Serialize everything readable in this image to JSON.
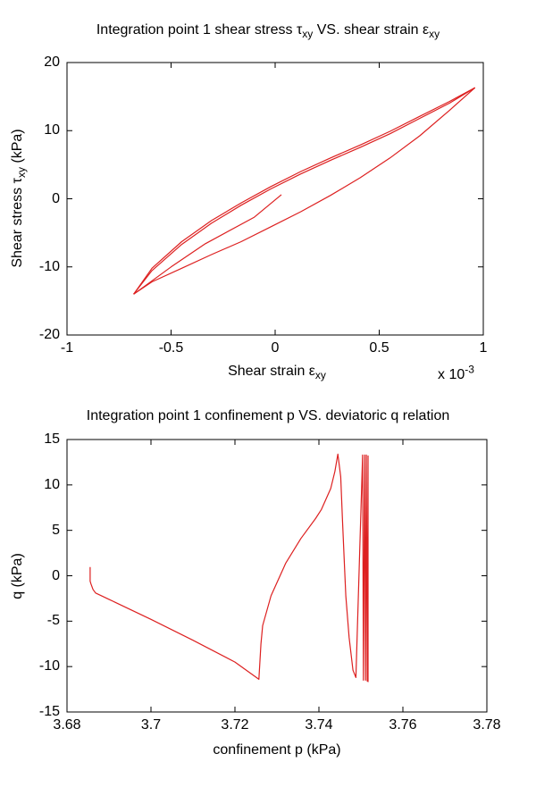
{
  "figure": {
    "background": "#ffffff",
    "axis_color": "#000000",
    "line_color": "#dd2020"
  },
  "chart_data": [
    {
      "type": "line",
      "title": "Integration point 1 shear stress τxy VS. shear strain εxy",
      "title_parts": {
        "p1": "Integration point 1 shear stress τ",
        "sub1": "xy",
        "p2": " VS. shear strain ε",
        "sub2": "xy"
      },
      "xlabel": "Shear strain εxy",
      "xlabel_parts": {
        "p1": "Shear strain ε",
        "sub1": "xy"
      },
      "ylabel": "Shear stress τxy (kPa)",
      "ylabel_parts": {
        "p1": "Shear stress τ",
        "sub1": "xy",
        "p2": " (kPa)"
      },
      "x_scale_annotation": {
        "prefix": "x 10",
        "sup": "-3"
      },
      "x_unit_scale": "1e-3",
      "xlim": [
        -1,
        1
      ],
      "ylim": [
        -20,
        20
      ],
      "x_tick_values": [
        -1,
        -0.5,
        0,
        0.5,
        1
      ],
      "x_tick_labels": [
        "-1",
        "-0.5",
        "0",
        "0.5",
        "1"
      ],
      "y_tick_values": [
        -20,
        -10,
        0,
        10,
        20
      ],
      "y_tick_labels": [
        "-20",
        "-10",
        "0",
        "10",
        "20"
      ],
      "grid": false,
      "legend": null,
      "line_color": "#dd2020",
      "series": [
        {
          "name": "initial_loading",
          "x": [
            0.03,
            -0.1,
            -0.335,
            -0.5,
            -0.68
          ],
          "y": [
            0.6,
            -2.7,
            -6.6,
            -10.0,
            -14.0
          ]
        },
        {
          "name": "cycle_upper_1",
          "x": [
            -0.68,
            -0.592,
            -0.449,
            -0.306,
            -0.163,
            -0.02,
            0.123,
            0.266,
            0.409,
            0.552,
            0.695,
            0.838,
            0.96
          ],
          "y": [
            -14.0,
            -10.2,
            -6.3,
            -3.2,
            -0.6,
            1.8,
            4.0,
            6.0,
            7.9,
            9.9,
            12.1,
            14.3,
            16.3
          ]
        },
        {
          "name": "cycle_upper_2",
          "x": [
            -0.68,
            -0.592,
            -0.449,
            -0.306,
            -0.163,
            -0.02,
            0.123,
            0.266,
            0.409,
            0.552,
            0.695,
            0.838,
            0.96
          ],
          "y": [
            -14.0,
            -10.55,
            -6.7,
            -3.6,
            -0.95,
            1.45,
            3.65,
            5.65,
            7.55,
            9.55,
            11.8,
            14.05,
            16.3
          ]
        },
        {
          "name": "cycle_lower",
          "x": [
            0.96,
            0.838,
            0.695,
            0.552,
            0.409,
            0.266,
            0.123,
            -0.02,
            -0.163,
            -0.306,
            -0.449,
            -0.592,
            -0.68
          ],
          "y": [
            16.3,
            13.0,
            9.25,
            6.0,
            3.1,
            0.5,
            -1.9,
            -4.1,
            -6.3,
            -8.2,
            -10.2,
            -12.2,
            -14.0
          ]
        }
      ]
    },
    {
      "type": "line",
      "title": "Integration point 1 confinement p VS. deviatoric q relation",
      "title_parts": {
        "p1": "Integration point 1 confinement p VS. deviatoric q relation"
      },
      "xlabel": "confinement p (kPa)",
      "xlabel_parts": {
        "p1": "confinement p (kPa)"
      },
      "ylabel": "q (kPa)",
      "ylabel_parts": {
        "p1": "q (kPa)"
      },
      "xlim": [
        3.68,
        3.78
      ],
      "ylim": [
        -15,
        15
      ],
      "x_tick_values": [
        3.68,
        3.7,
        3.72,
        3.74,
        3.76,
        3.78
      ],
      "x_tick_labels": [
        "3.68",
        "3.7",
        "3.72",
        "3.74",
        "3.76",
        "3.78"
      ],
      "y_tick_values": [
        -15,
        -10,
        -5,
        0,
        5,
        10,
        15
      ],
      "y_tick_labels": [
        "-15",
        "-10",
        "-5",
        "0",
        "5",
        "10",
        "15"
      ],
      "grid": false,
      "legend": null,
      "line_color": "#dd2020",
      "series": [
        {
          "name": "p_q_path",
          "x": [
            3.6855,
            3.6855,
            3.6857,
            3.6862,
            3.6868,
            3.69,
            3.7,
            3.71,
            3.72,
            3.7257,
            3.7262,
            3.7266,
            3.7286,
            3.7321,
            3.7357,
            3.7392,
            3.7406,
            3.7428,
            3.7438,
            3.7445,
            3.7452,
            3.7456,
            3.746,
            3.7464,
            3.7472,
            3.7481,
            3.7488,
            3.7504,
            3.7506,
            3.7509,
            3.7511,
            3.7513,
            3.7515,
            3.7517,
            3.7517
          ],
          "y": [
            0.95,
            -0.6,
            -0.9,
            -1.5,
            -1.9,
            -2.6,
            -4.8,
            -7.1,
            -9.5,
            -11.4,
            -7.5,
            -5.5,
            -2.2,
            1.4,
            4.1,
            6.3,
            7.3,
            9.6,
            11.5,
            13.4,
            10.9,
            6.3,
            2.0,
            -2.2,
            -6.8,
            -10.4,
            -11.2,
            13.3,
            -11.5,
            13.3,
            -11.5,
            13.3,
            -11.6,
            13.2,
            -11.7
          ]
        }
      ]
    }
  ]
}
